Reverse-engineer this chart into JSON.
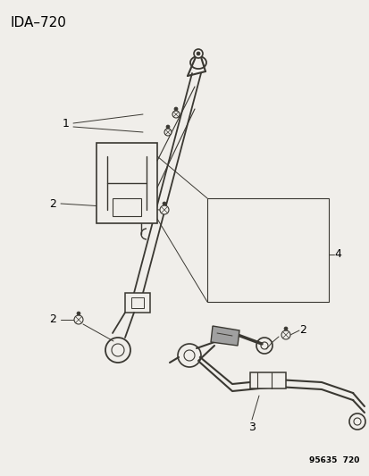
{
  "title": "IDA–720",
  "part_number": "95635  720",
  "bg_color": "#f0eeea",
  "line_color": "#3a3832",
  "figsize": [
    4.14,
    5.33
  ],
  "dpi": 100,
  "label_fs": 9,
  "title_fs": 11
}
